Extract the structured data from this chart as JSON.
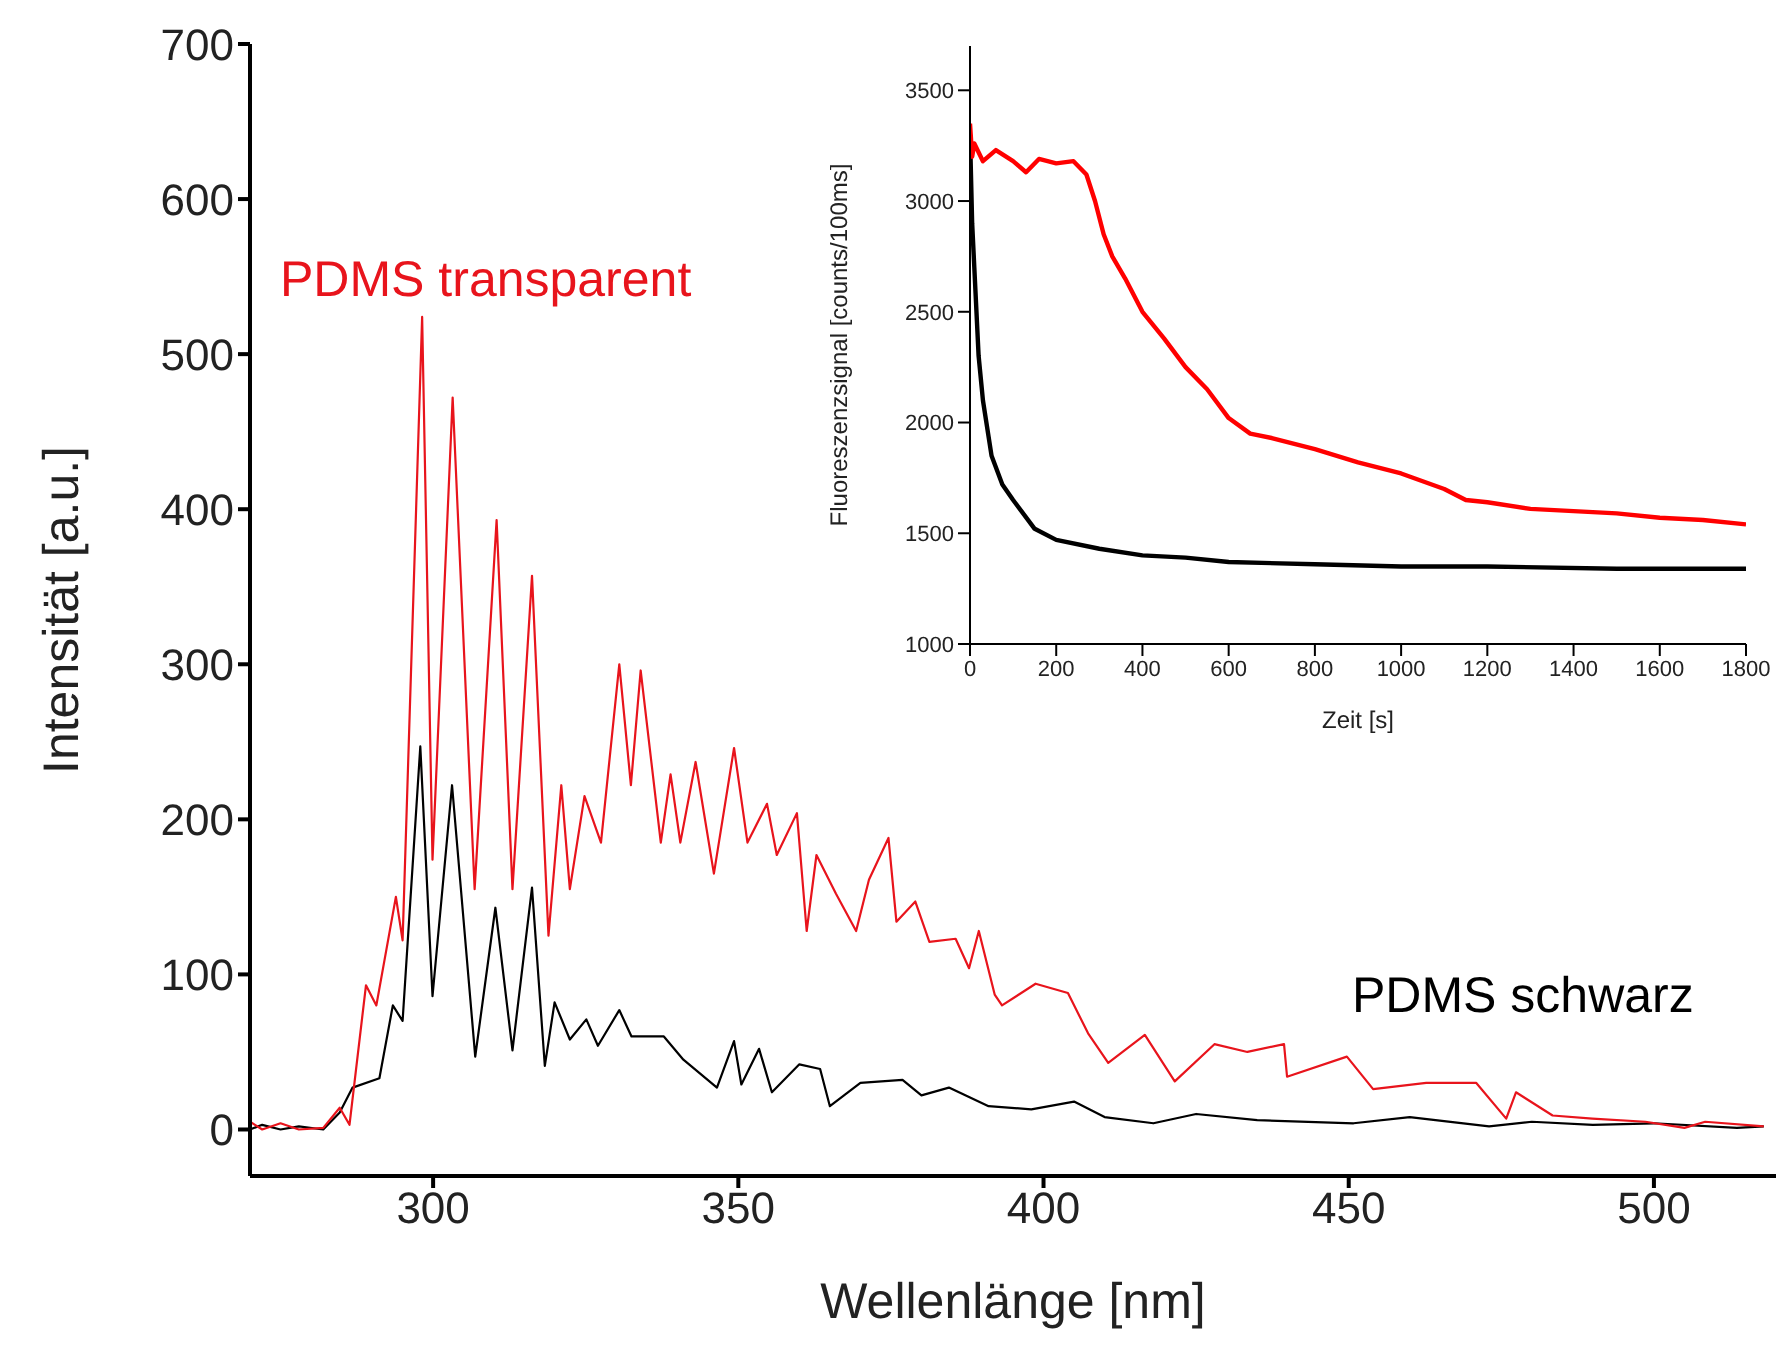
{
  "chart_data": [
    {
      "type": "line",
      "xlabel": "Wellenlänge [nm]",
      "ylabel": "Intensität [a.u.]",
      "xlim": [
        270,
        520
      ],
      "xticks": [
        300,
        350,
        400,
        450,
        500
      ],
      "ylim": [
        -30,
        700
      ],
      "yticks": [
        0,
        100,
        200,
        300,
        400,
        500,
        600,
        700
      ],
      "series": [
        {
          "name": "PDMS transparent",
          "color": "#e8141c",
          "x": [
            270,
            272,
            275,
            278,
            282,
            284.7,
            286.3,
            289,
            290.7,
            293.9,
            295,
            298.2,
            299.9,
            303.2,
            306.8,
            310.4,
            313,
            316.2,
            318.9,
            321,
            322.4,
            324.8,
            327.5,
            330.5,
            332.4,
            334,
            337.3,
            338.9,
            340.5,
            343,
            346,
            349.3,
            351.5,
            354.7,
            356.3,
            359.6,
            361.2,
            362.8,
            366,
            369.3,
            371.4,
            374.6,
            375.9,
            379,
            381.3,
            385.6,
            387.8,
            389.4,
            392,
            393.2,
            398.7,
            404,
            407.3,
            410.6,
            416.6,
            421.5,
            428,
            433.4,
            439.4,
            439.9,
            449.7,
            454,
            462.7,
            470.9,
            475.8,
            477.4,
            483.4,
            489.9,
            498.6,
            505,
            508.4,
            518
          ],
          "values": [
            5,
            0,
            4,
            0,
            1,
            14,
            3,
            93,
            80,
            150,
            122,
            524,
            174,
            472,
            155,
            393,
            155,
            357,
            125,
            222,
            155,
            215,
            185,
            300,
            222,
            296,
            185,
            229,
            185,
            237,
            165,
            246,
            185,
            210,
            177,
            204,
            128,
            177,
            152,
            128,
            161,
            188,
            134,
            147,
            121,
            123,
            104,
            128,
            87,
            80,
            94,
            88,
            62,
            43,
            61,
            31,
            55,
            50,
            55,
            34,
            47,
            26,
            30,
            30,
            7,
            24,
            9,
            7,
            5,
            1,
            5,
            2
          ]
        },
        {
          "name": "PDMS schwarz",
          "color": "#000000",
          "x": [
            270,
            272,
            275,
            278,
            282,
            284.7,
            286.8,
            291.2,
            293.4,
            295,
            297.9,
            299.9,
            303.1,
            306.9,
            310.2,
            313,
            316.2,
            318.3,
            319.9,
            322.4,
            325.1,
            327,
            330.5,
            332.5,
            337.8,
            341,
            346.5,
            349.3,
            350.5,
            353.4,
            355.5,
            360,
            363.4,
            365,
            370,
            376.9,
            380,
            384.5,
            391,
            398,
            405,
            410,
            418,
            425,
            435,
            450.8,
            460,
            473,
            480,
            490,
            500,
            513.6,
            518
          ],
          "values": [
            0,
            3,
            0,
            2,
            0,
            11,
            27,
            33,
            80,
            70,
            247,
            86,
            222,
            47,
            143,
            51,
            156,
            41,
            82,
            58,
            71,
            54,
            77,
            60,
            60,
            45,
            27,
            57,
            29,
            52,
            24,
            42,
            39,
            15,
            30,
            32,
            22,
            27,
            15,
            13,
            18,
            8,
            4,
            10,
            6,
            4,
            8,
            2,
            5,
            3,
            4,
            1,
            2
          ]
        }
      ]
    },
    {
      "type": "line",
      "xlabel": "Zeit [s]",
      "ylabel": "Fluoreszenzsignal [counts/100ms]",
      "xlim": [
        0,
        1800
      ],
      "xticks": [
        0,
        200,
        400,
        600,
        800,
        1000,
        1200,
        1400,
        1600,
        1800
      ],
      "ylim": [
        1000,
        3700
      ],
      "yticks": [
        1000,
        1500,
        2000,
        2500,
        3000,
        3500
      ],
      "series": [
        {
          "color": "#ff0000",
          "x": [
            0,
            5,
            10,
            30,
            60,
            100,
            130,
            160,
            200,
            240,
            270,
            290,
            310,
            330,
            360,
            400,
            450,
            500,
            550,
            600,
            650,
            700,
            800,
            900,
            1000,
            1100,
            1150,
            1200,
            1300,
            1400,
            1500,
            1600,
            1700,
            1800
          ],
          "values": [
            3350,
            3200,
            3260,
            3180,
            3230,
            3180,
            3130,
            3190,
            3170,
            3180,
            3120,
            3000,
            2850,
            2750,
            2650,
            2500,
            2380,
            2250,
            2150,
            2020,
            1950,
            1930,
            1880,
            1820,
            1770,
            1700,
            1650,
            1640,
            1610,
            1600,
            1590,
            1570,
            1560,
            1540
          ]
        },
        {
          "color": "#000000",
          "x": [
            0,
            5,
            10,
            20,
            30,
            50,
            75,
            100,
            150,
            200,
            300,
            400,
            500,
            600,
            800,
            1000,
            1200,
            1500,
            1800
          ],
          "values": [
            3300,
            2900,
            2700,
            2300,
            2100,
            1850,
            1720,
            1650,
            1520,
            1470,
            1430,
            1400,
            1390,
            1370,
            1360,
            1350,
            1350,
            1340,
            1340
          ]
        }
      ]
    }
  ]
}
